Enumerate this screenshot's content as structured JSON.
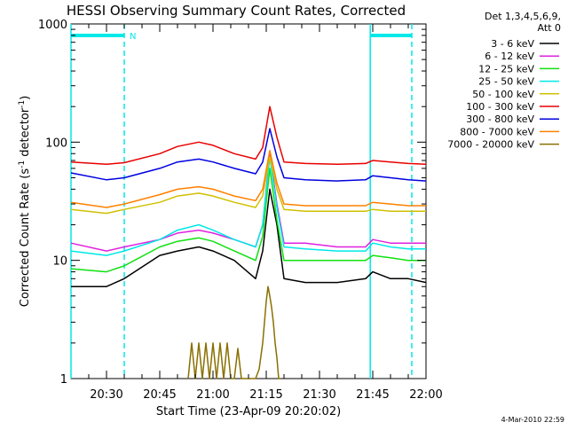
{
  "chart_data": {
    "type": "line",
    "title": "HESSI Observing Summary Count Rates, Corrected",
    "xlabel": "Start Time (23-Apr-09 20:20:02)",
    "ylabel_main": "Corrected Count Rate (s",
    "ylabel_sup1": "-1",
    "ylabel_mid": " detector",
    "ylabel_sup2": "-1",
    "ylabel_end": ")",
    "yscale": "log",
    "ylim": [
      1,
      1000
    ],
    "xlim_minutes": [
      20.0,
      120.0
    ],
    "x_tick_labels": [
      "20:30",
      "20:45",
      "21:00",
      "21:15",
      "21:30",
      "21:45",
      "22:00"
    ],
    "x_tick_minutes": [
      30,
      45,
      60,
      75,
      90,
      105,
      120
    ],
    "y_tick_labels": [
      "1",
      "10",
      "100",
      "1000"
    ],
    "y_tick_values": [
      1,
      10,
      100,
      1000
    ],
    "legend_header": [
      "Det 1,3,4,5,6,9,",
      "Att 0"
    ],
    "legend": [
      {
        "label": "3 - 6 keV",
        "color": "#000000"
      },
      {
        "label": "6 - 12 keV",
        "color": "#e020e0"
      },
      {
        "label": "12 - 25 keV",
        "color": "#10e010"
      },
      {
        "label": "25 - 50 keV",
        "color": "#00e8e8"
      },
      {
        "label": "50 - 100 keV",
        "color": "#d0c000"
      },
      {
        "label": "100 - 300 keV",
        "color": "#e80000"
      },
      {
        "label": "300 - 800 keV",
        "color": "#0000e0"
      },
      {
        "label": "800 - 7000 keV",
        "color": "#ff8000"
      },
      {
        "label": "7000 - 20000 keV",
        "color": "#8a7000"
      }
    ],
    "night_marker_label": "N",
    "night_intervals_minutes": [
      [
        20.0,
        35.0
      ],
      [
        104.3,
        120.5
      ]
    ],
    "series": [
      {
        "name": "3 - 6 keV",
        "color": "#000000",
        "x": [
          20,
          30,
          35,
          45,
          50,
          56,
          60,
          66,
          72,
          74,
          76,
          78,
          80,
          86,
          95,
          103,
          105,
          110,
          115,
          120
        ],
        "y": [
          6,
          6,
          7,
          11,
          12,
          13,
          12,
          10,
          7,
          12,
          40,
          20,
          7,
          6.5,
          6.5,
          7,
          8,
          7,
          7,
          6.5
        ]
      },
      {
        "name": "6 - 12 keV",
        "color": "#e020e0",
        "x": [
          20,
          30,
          35,
          45,
          50,
          56,
          60,
          66,
          72,
          74,
          76,
          78,
          80,
          86,
          95,
          103,
          105,
          110,
          115,
          120
        ],
        "y": [
          14,
          12,
          13,
          15,
          17,
          18,
          17,
          15,
          13,
          20,
          80,
          30,
          14,
          14,
          13,
          13,
          15,
          14,
          14,
          14
        ]
      },
      {
        "name": "12 - 25 keV",
        "color": "#10e010",
        "x": [
          20,
          30,
          35,
          45,
          50,
          56,
          60,
          66,
          72,
          74,
          76,
          78,
          80,
          86,
          95,
          103,
          105,
          110,
          115,
          120
        ],
        "y": [
          8.5,
          8,
          9,
          13,
          14.5,
          15.5,
          14.5,
          12,
          10,
          16,
          60,
          22,
          10,
          10,
          10,
          10,
          11,
          10.5,
          10,
          10
        ]
      },
      {
        "name": "25 - 50 keV",
        "color": "#00e8e8",
        "x": [
          20,
          30,
          35,
          45,
          50,
          56,
          60,
          66,
          72,
          74,
          76,
          78,
          80,
          86,
          95,
          103,
          105,
          110,
          115,
          120
        ],
        "y": [
          12,
          11,
          12,
          15,
          18,
          20,
          18,
          15,
          13,
          20,
          75,
          28,
          13,
          12.5,
          12,
          12,
          14,
          13,
          12.5,
          12.5
        ]
      },
      {
        "name": "50 - 100 keV",
        "color": "#d0c000",
        "x": [
          20,
          30,
          35,
          45,
          50,
          56,
          60,
          66,
          72,
          74,
          76,
          78,
          80,
          86,
          95,
          103,
          105,
          110,
          115,
          120
        ],
        "y": [
          27,
          25,
          27,
          31,
          35,
          37,
          35,
          31,
          28,
          35,
          75,
          40,
          27,
          26,
          26,
          26,
          27,
          26,
          26,
          26
        ]
      },
      {
        "name": "100 - 300 keV",
        "color": "#e80000",
        "x": [
          20,
          30,
          35,
          45,
          50,
          56,
          60,
          66,
          72,
          74,
          76,
          78,
          80,
          86,
          95,
          103,
          105,
          110,
          115,
          120
        ],
        "y": [
          68,
          65,
          67,
          80,
          92,
          100,
          94,
          80,
          72,
          90,
          200,
          110,
          68,
          66,
          65,
          66,
          70,
          68,
          66,
          65
        ]
      },
      {
        "name": "300 - 800 keV",
        "color": "#0000e0",
        "x": [
          20,
          30,
          35,
          45,
          50,
          56,
          60,
          66,
          72,
          74,
          76,
          78,
          80,
          86,
          95,
          103,
          105,
          110,
          115,
          120
        ],
        "y": [
          55,
          48,
          50,
          60,
          68,
          72,
          68,
          60,
          54,
          68,
          130,
          75,
          50,
          48,
          47,
          48,
          52,
          50,
          48,
          47
        ]
      },
      {
        "name": "800 - 7000 keV",
        "color": "#ff8000",
        "x": [
          20,
          30,
          35,
          45,
          50,
          56,
          60,
          66,
          72,
          74,
          76,
          78,
          80,
          86,
          95,
          103,
          105,
          110,
          115,
          120
        ],
        "y": [
          31,
          28,
          30,
          36,
          40,
          42,
          40,
          35,
          32,
          40,
          85,
          45,
          30,
          29,
          29,
          29,
          31,
          30,
          29,
          29
        ]
      },
      {
        "name": "7000 - 20000 keV",
        "color": "#8a7000",
        "x": [
          53,
          54,
          55,
          56,
          57,
          58,
          59,
          60,
          61,
          62,
          63,
          64,
          65,
          66,
          67,
          68,
          72,
          73,
          74,
          74.5,
          75,
          75.5,
          76,
          76.5,
          77,
          77.5,
          78,
          78.5,
          79
        ],
        "y": [
          1,
          2,
          1,
          2,
          1,
          2,
          1,
          2,
          1,
          2,
          1,
          2,
          1,
          1,
          1.8,
          1,
          1,
          1.2,
          2,
          3,
          4.5,
          6,
          5,
          4,
          3,
          2,
          1.5,
          1,
          1
        ]
      }
    ]
  },
  "footer": {
    "timestamp": "4-Mar-2010 22:59"
  }
}
